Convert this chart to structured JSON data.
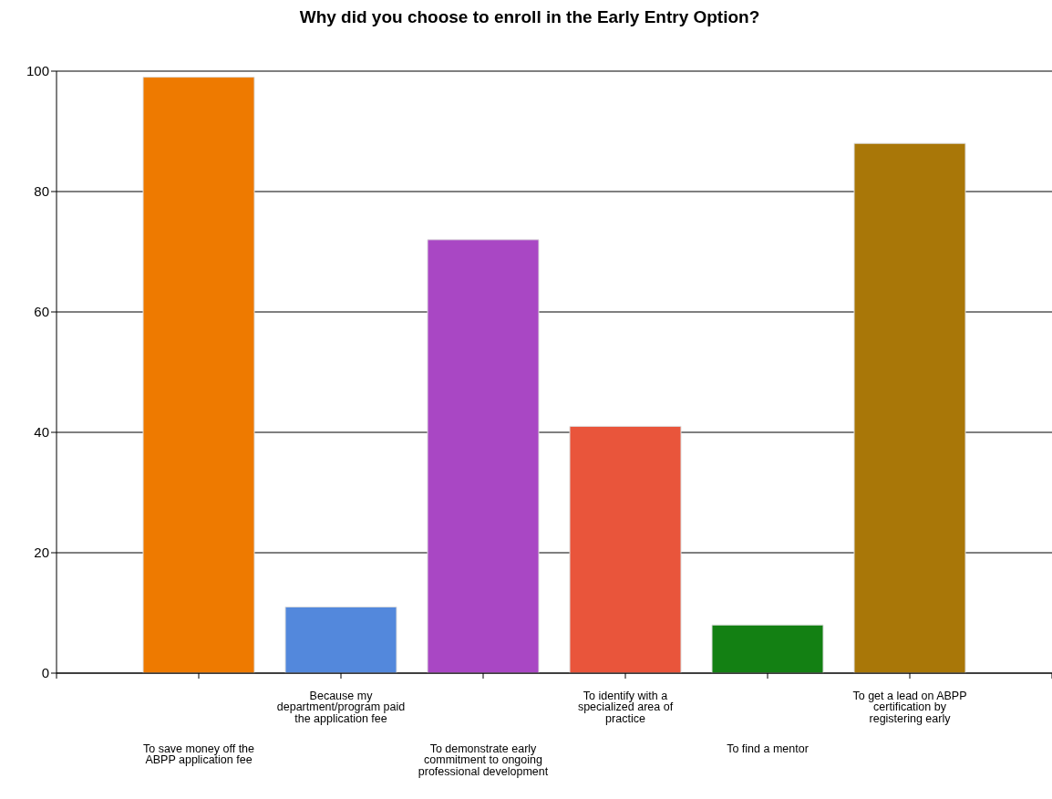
{
  "chart_data": {
    "type": "bar",
    "title": "Why did you choose to enroll in the Early Entry Option?",
    "categories": [
      "To save money off the ABPP application fee",
      "Because my department/program paid the application fee",
      "To demonstrate early commitment to ongoing professional development",
      "To identify with a specialized area of practice",
      "To find a mentor",
      "To get a lead on ABPP certification by registering early"
    ],
    "values": [
      99,
      11,
      72,
      41,
      8,
      88
    ],
    "colors": [
      "#ee7a00",
      "#5388dc",
      "#a947c4",
      "#e9553b",
      "#138013",
      "#a97708"
    ],
    "ylim": [
      0,
      100
    ],
    "yticks": [
      0,
      20,
      40,
      60,
      80,
      100
    ],
    "grid": "y"
  }
}
